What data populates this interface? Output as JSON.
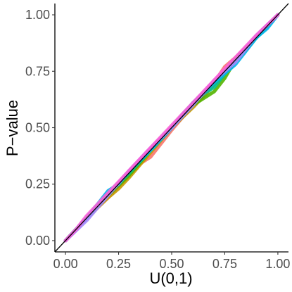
{
  "chart_data": {
    "type": "line",
    "xlabel": "U(0,1)",
    "ylabel": "P−value",
    "xlim": [
      -0.05,
      1.05
    ],
    "ylim": [
      -0.05,
      1.05
    ],
    "x_ticks": [
      0.0,
      0.25,
      0.5,
      0.75,
      1.0
    ],
    "y_ticks": [
      0.0,
      0.25,
      0.5,
      0.75,
      1.0
    ],
    "x_tick_labels": [
      "0.00",
      "0.25",
      "0.50",
      "0.75",
      "1.00"
    ],
    "y_tick_labels": [
      "0.00",
      "0.25",
      "0.50",
      "0.75",
      "1.00"
    ],
    "grid": false,
    "reference_line": {
      "x": [
        0,
        1
      ],
      "y": [
        0,
        1
      ],
      "color": "#000000"
    },
    "series": [
      {
        "color": "#F8766D",
        "x": [
          0.0,
          0.1,
          0.2,
          0.3,
          0.35,
          0.4,
          0.5,
          0.6,
          0.7,
          0.75,
          0.8,
          0.9,
          1.0
        ],
        "y": [
          0.0,
          0.1,
          0.19,
          0.29,
          0.34,
          0.37,
          0.49,
          0.6,
          0.7,
          0.77,
          0.81,
          0.9,
          1.0
        ]
      },
      {
        "color": "#C49A00",
        "x": [
          0.0,
          0.1,
          0.2,
          0.25,
          0.3,
          0.4,
          0.5,
          0.6,
          0.7,
          0.8,
          0.9,
          1.0
        ],
        "y": [
          0.0,
          0.1,
          0.19,
          0.23,
          0.28,
          0.39,
          0.5,
          0.59,
          0.69,
          0.79,
          0.9,
          1.0
        ]
      },
      {
        "color": "#53B400",
        "x": [
          0.0,
          0.1,
          0.2,
          0.3,
          0.4,
          0.5,
          0.6,
          0.7,
          0.75,
          0.8,
          0.9,
          1.0
        ],
        "y": [
          0.0,
          0.1,
          0.2,
          0.29,
          0.4,
          0.5,
          0.6,
          0.66,
          0.72,
          0.8,
          0.9,
          1.0
        ]
      },
      {
        "color": "#00C094",
        "x": [
          0.0,
          0.1,
          0.2,
          0.3,
          0.4,
          0.5,
          0.6,
          0.65,
          0.7,
          0.8,
          0.9,
          1.0
        ],
        "y": [
          0.0,
          0.1,
          0.21,
          0.3,
          0.4,
          0.5,
          0.61,
          0.65,
          0.68,
          0.8,
          0.9,
          1.0
        ]
      },
      {
        "color": "#00B6EB",
        "x": [
          0.0,
          0.1,
          0.2,
          0.25,
          0.3,
          0.4,
          0.5,
          0.6,
          0.7,
          0.8,
          0.9,
          0.95,
          1.0
        ],
        "y": [
          0.0,
          0.1,
          0.22,
          0.25,
          0.31,
          0.4,
          0.5,
          0.61,
          0.7,
          0.78,
          0.9,
          0.94,
          1.0
        ]
      },
      {
        "color": "#A58AFF",
        "x": [
          0.0,
          0.1,
          0.2,
          0.3,
          0.4,
          0.5,
          0.6,
          0.7,
          0.8,
          0.9,
          1.0
        ],
        "y": [
          0.0,
          0.09,
          0.2,
          0.31,
          0.41,
          0.5,
          0.6,
          0.71,
          0.79,
          0.91,
          1.0
        ]
      },
      {
        "color": "#FB61D7",
        "x": [
          0.0,
          0.05,
          0.1,
          0.2,
          0.3,
          0.4,
          0.5,
          0.6,
          0.7,
          0.8,
          0.9,
          1.0
        ],
        "y": [
          0.0,
          0.05,
          0.11,
          0.21,
          0.31,
          0.41,
          0.51,
          0.61,
          0.71,
          0.81,
          0.91,
          1.0
        ]
      }
    ]
  }
}
